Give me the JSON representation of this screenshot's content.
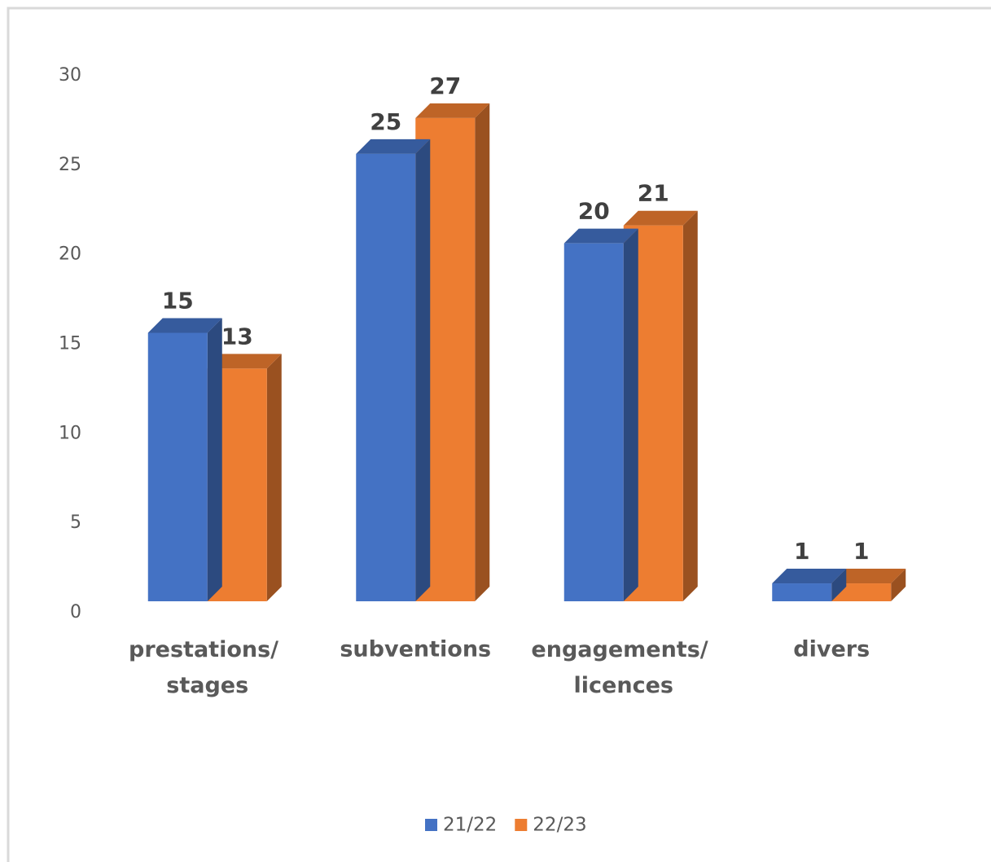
{
  "chart_data": {
    "type": "bar3d",
    "categories": [
      "prestations/ stages",
      "subventions",
      "engagements/ licences",
      "divers"
    ],
    "series": [
      {
        "name": "21/22",
        "color": "#4472c4",
        "values": [
          15,
          25,
          20,
          1
        ]
      },
      {
        "name": "22/23",
        "color": "#ed7d31",
        "values": [
          13,
          27,
          21,
          1
        ]
      }
    ],
    "ylim": [
      0,
      30
    ],
    "yticks": [
      0,
      5,
      10,
      15,
      20,
      25,
      30
    ],
    "grid": false,
    "legend": "bottom"
  }
}
